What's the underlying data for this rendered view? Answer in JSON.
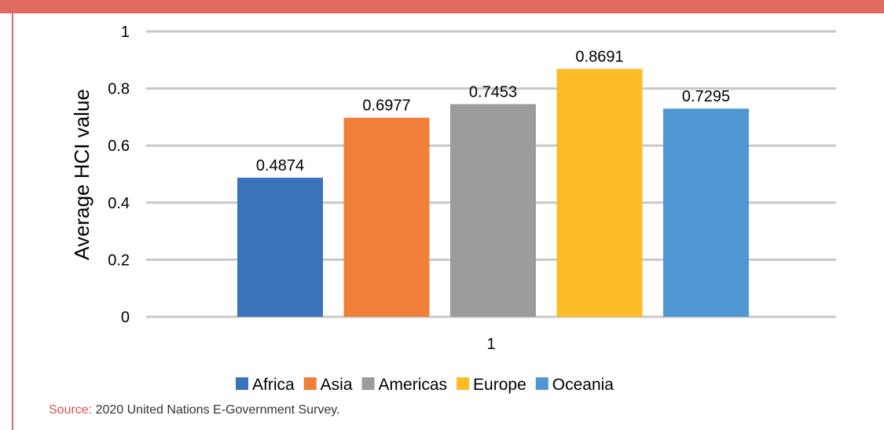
{
  "accent_color": "#e06a60",
  "chart_data": {
    "type": "bar",
    "categories": [
      "1"
    ],
    "series": [
      {
        "name": "Africa",
        "values": [
          0.4874
        ],
        "color": "#3b73bb",
        "label": "0.4874"
      },
      {
        "name": "Asia",
        "values": [
          0.6977
        ],
        "color": "#ef7f39",
        "label": "0.6977"
      },
      {
        "name": "Americas",
        "values": [
          0.7453
        ],
        "color": "#9a9d9c",
        "label": "0.7453"
      },
      {
        "name": "Europe",
        "values": [
          0.8691
        ],
        "color": "#fcbc25",
        "label": "0.8691"
      },
      {
        "name": "Oceania",
        "values": [
          0.7295
        ],
        "color": "#4e97d3",
        "label": "0.7295"
      }
    ],
    "ylabel": "Average HCI value",
    "xlabel": "",
    "ylim": [
      0,
      1
    ],
    "yticks": [
      "0",
      "0.2",
      "0.4",
      "0.6",
      "0.8",
      "1"
    ],
    "grid": true,
    "legend_position": "bottom"
  },
  "source": {
    "key": "Source:",
    "text": " 2020 United Nations E-Government Survey."
  }
}
